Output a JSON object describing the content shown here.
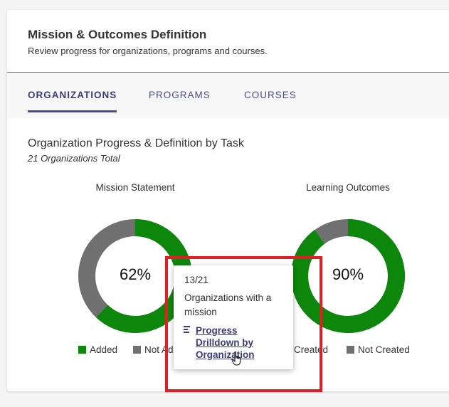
{
  "header": {
    "title": "Mission & Outcomes Definition",
    "subtitle": "Review progress for organizations, programs and courses."
  },
  "tabs": [
    {
      "label": "ORGANIZATIONS",
      "active": true
    },
    {
      "label": "PROGRAMS",
      "active": false
    },
    {
      "label": "COURSES",
      "active": false
    }
  ],
  "section": {
    "title": "Organization Progress & Definition by Task",
    "subtitle": "21 Organizations Total"
  },
  "colors": {
    "green": "#0c870c",
    "gray": "#707070",
    "accent": "#3b3b7a",
    "highlight": "#e01e25"
  },
  "charts": [
    {
      "label": "Mission Statement",
      "percent_label": "62%",
      "filled_fraction": 0.62,
      "legend": [
        {
          "label": "Added",
          "color": "#0c870c"
        },
        {
          "label": "Not Added",
          "color": "#707070"
        }
      ]
    },
    {
      "label": "Learning Outcomes",
      "percent_label": "90%",
      "filled_fraction": 0.9,
      "legend": [
        {
          "label": "Created",
          "color": "#0c870c"
        },
        {
          "label": "Not Created",
          "color": "#707070"
        }
      ]
    }
  ],
  "tooltip": {
    "count": "13/21",
    "description": "Organizations with a mission",
    "link_icon": "bar-chart-icon",
    "link_label": "Progress Drilldown by Organization"
  }
}
